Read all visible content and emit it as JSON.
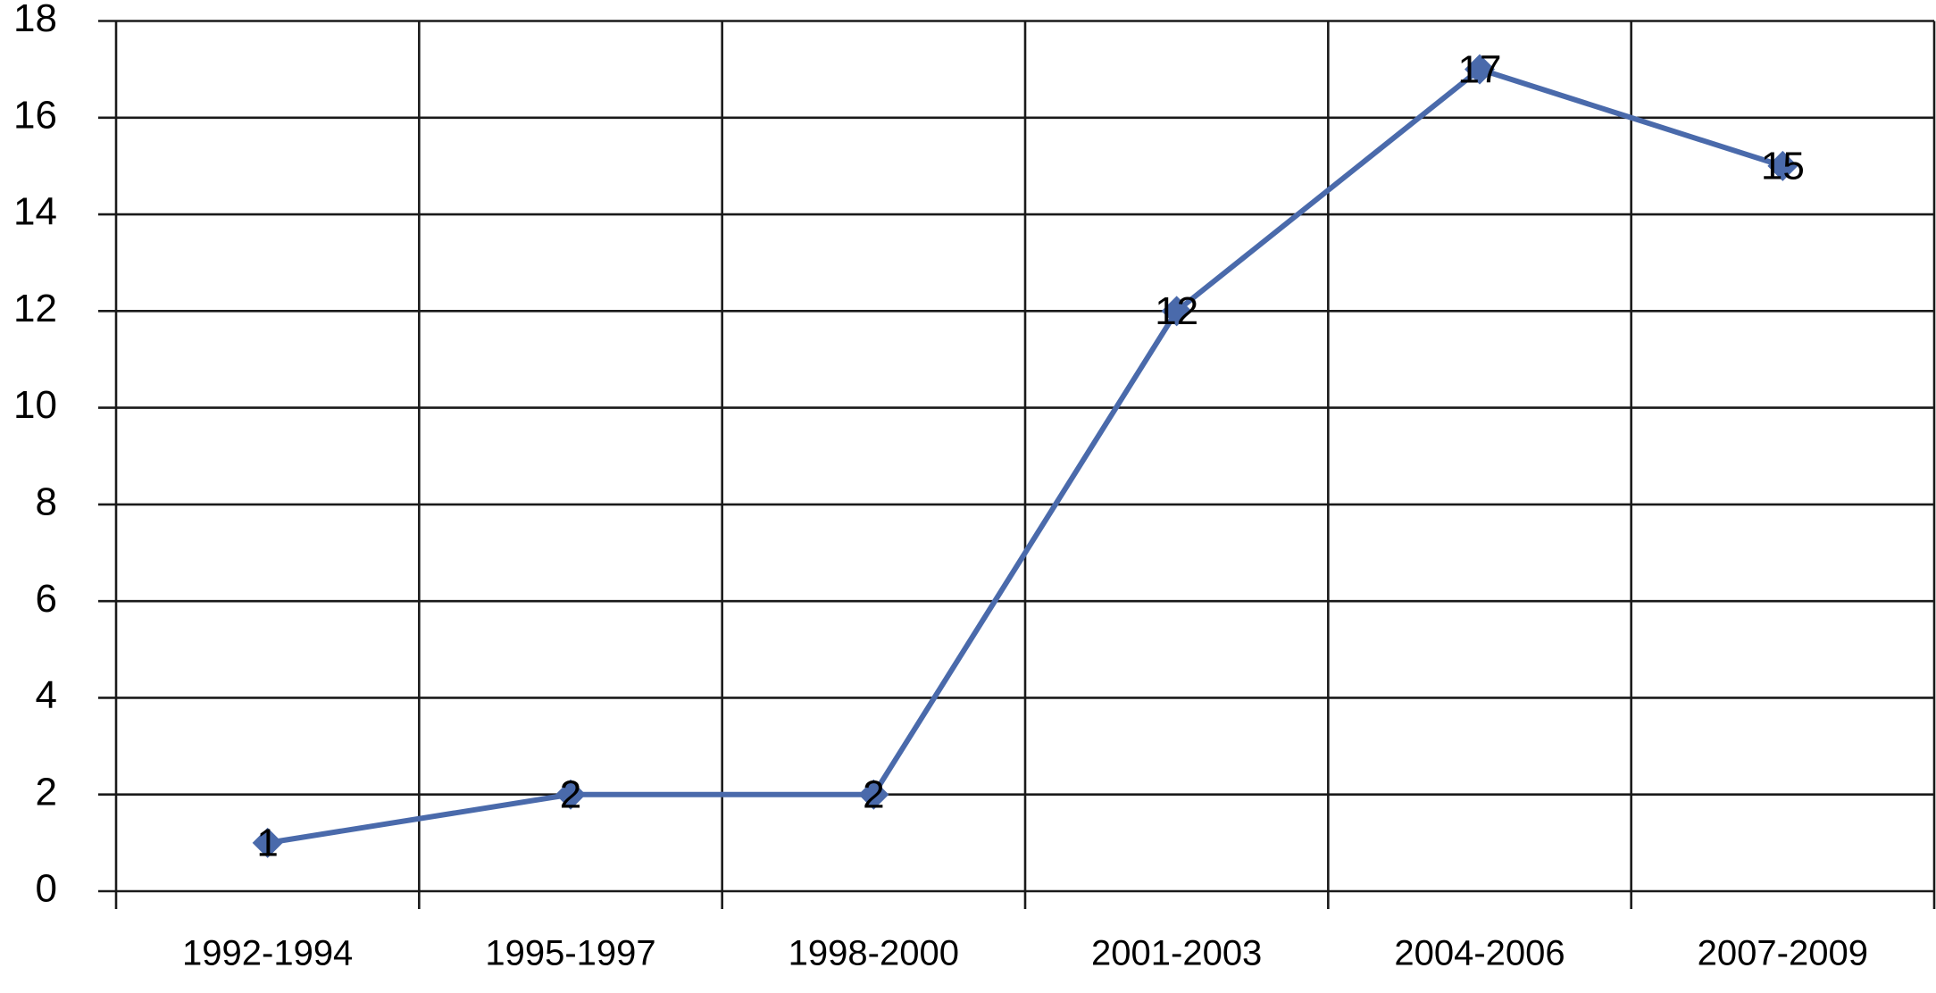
{
  "chart_data": {
    "type": "line",
    "categories": [
      "1992-1994",
      "1995-1997",
      "1998-2000",
      "2001-2003",
      "2004-2006",
      "2007-2009"
    ],
    "values": [
      1,
      2,
      2,
      12,
      17,
      15
    ],
    "color": "#4a6aab",
    "ylim": [
      0,
      18
    ],
    "yticks": [
      0,
      2,
      4,
      6,
      8,
      10,
      12,
      14,
      16,
      18
    ],
    "grid": true,
    "data_labels": true
  }
}
